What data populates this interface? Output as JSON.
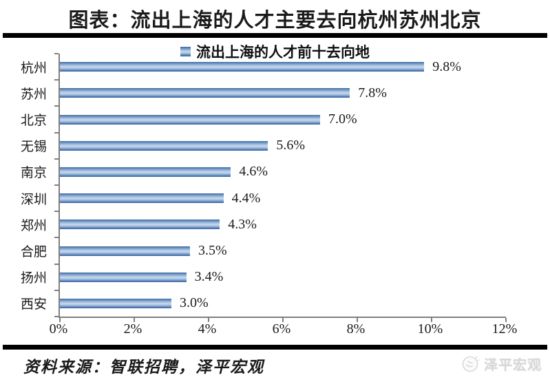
{
  "title": "图表：流出上海的人才主要去向杭州苏州北京",
  "chart_data": {
    "type": "bar",
    "orientation": "horizontal",
    "title": "流出上海的人才前十去向地",
    "legend": "流出上海的人才前十去向地",
    "legend_position": "top-center",
    "categories": [
      "杭州",
      "苏州",
      "北京",
      "无锡",
      "南京",
      "深圳",
      "郑州",
      "合肥",
      "扬州",
      "西安"
    ],
    "values": [
      9.8,
      7.8,
      7.0,
      5.6,
      4.6,
      4.4,
      4.3,
      3.5,
      3.4,
      3.0
    ],
    "value_labels": [
      "9.8%",
      "7.8%",
      "7.0%",
      "5.6%",
      "4.6%",
      "4.4%",
      "4.3%",
      "3.5%",
      "3.4%",
      "3.0%"
    ],
    "xlabel": "",
    "ylabel": "",
    "xlim": [
      0,
      12
    ],
    "x_tick_labels": [
      "0%",
      "2%",
      "4%",
      "6%",
      "8%",
      "10%",
      "12%"
    ],
    "x_tick_values": [
      0,
      2,
      4,
      6,
      8,
      10,
      12
    ],
    "grid": false,
    "bar_color_dark": "#3e689e",
    "bar_color_light": "#c9d8ec",
    "axis_color": "#7f7f7f"
  },
  "source": "资料来源：智联招聘，泽平宏观",
  "watermark": {
    "label": "泽平宏观",
    "icon": "zeping-macro-logo-icon"
  },
  "colors": {
    "divider": "#000000",
    "background": "#ffffff",
    "text": "#1a1a1a"
  }
}
